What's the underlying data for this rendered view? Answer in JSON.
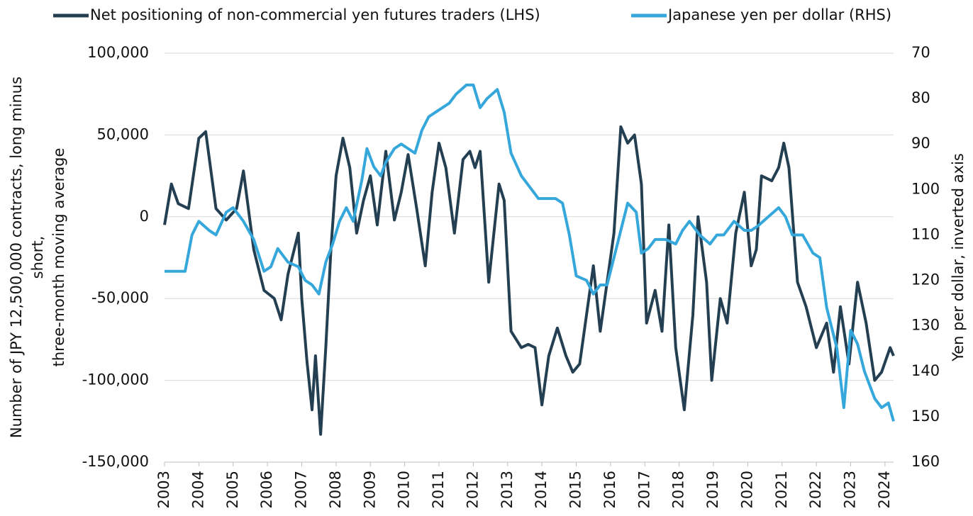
{
  "chart_data": {
    "type": "line",
    "ylabel": [
      "Number of JPY 12,500,000 contracts, long minus",
      "short,",
      "three-month moving average"
    ],
    "y2label": "Yen per dollar,  inverted axis",
    "xlim": [
      2003,
      2024.25
    ],
    "xticks": [
      2003,
      2004,
      2005,
      2006,
      2007,
      2008,
      2009,
      2010,
      2011,
      2012,
      2013,
      2014,
      2015,
      2016,
      2017,
      2018,
      2019,
      2020,
      2021,
      2022,
      2023,
      2024
    ],
    "ylim": [
      -150000,
      100000
    ],
    "yticks": [
      {
        "value": -150000,
        "label": "-150,000"
      },
      {
        "value": -100000,
        "label": "-100,000"
      },
      {
        "value": -50000,
        "label": "-50,000"
      },
      0,
      {
        "value": 50000,
        "label": "50,000"
      },
      {
        "value": 100000,
        "label": "100,000"
      }
    ],
    "y2lim": [
      70,
      160
    ],
    "y2_inverted": true,
    "y2ticks": [
      70,
      80,
      90,
      100,
      110,
      120,
      130,
      140,
      150,
      160
    ],
    "grid": true,
    "legend": "top",
    "series": [
      {
        "name": "Net positioning of non-commercial yen futures traders (LHS)",
        "color": "#243f52",
        "axis": "y",
        "x": [
          2003.0,
          2003.2,
          2003.4,
          2003.7,
          2004.0,
          2004.2,
          2004.5,
          2004.8,
          2005.1,
          2005.3,
          2005.6,
          2005.9,
          2006.2,
          2006.4,
          2006.6,
          2006.9,
          2007.0,
          2007.15,
          2007.3,
          2007.4,
          2007.55,
          2007.7,
          2007.85,
          2008.0,
          2008.2,
          2008.4,
          2008.6,
          2008.8,
          2009.0,
          2009.2,
          2009.45,
          2009.7,
          2009.9,
          2010.1,
          2010.35,
          2010.6,
          2010.8,
          2011.0,
          2011.2,
          2011.45,
          2011.7,
          2011.9,
          2012.05,
          2012.2,
          2012.45,
          2012.75,
          2012.9,
          2013.1,
          2013.4,
          2013.6,
          2013.8,
          2014.0,
          2014.2,
          2014.45,
          2014.7,
          2014.9,
          2015.1,
          2015.3,
          2015.5,
          2015.7,
          2015.9,
          2016.1,
          2016.3,
          2016.5,
          2016.7,
          2016.9,
          2017.05,
          2017.3,
          2017.5,
          2017.7,
          2017.9,
          2018.15,
          2018.4,
          2018.55,
          2018.8,
          2018.95,
          2019.2,
          2019.4,
          2019.65,
          2019.9,
          2020.1,
          2020.25,
          2020.4,
          2020.7,
          2020.9,
          2021.05,
          2021.2,
          2021.45,
          2021.7,
          2022.0,
          2022.3,
          2022.5,
          2022.7,
          2022.95,
          2023.2,
          2023.45,
          2023.7,
          2023.9,
          2024.15,
          2024.25
        ],
        "values": [
          -5000,
          20000,
          8000,
          5000,
          48000,
          52000,
          5000,
          -2000,
          5000,
          28000,
          -20000,
          -45000,
          -50000,
          -63000,
          -35000,
          -10000,
          -50000,
          -88000,
          -118000,
          -85000,
          -133000,
          -80000,
          -20000,
          25000,
          48000,
          30000,
          -10000,
          10000,
          25000,
          -5000,
          40000,
          -2000,
          15000,
          38000,
          5000,
          -30000,
          15000,
          45000,
          30000,
          -10000,
          35000,
          40000,
          30000,
          40000,
          -40000,
          20000,
          10000,
          -70000,
          -80000,
          -78000,
          -80000,
          -115000,
          -85000,
          -68000,
          -85000,
          -95000,
          -90000,
          -60000,
          -30000,
          -70000,
          -40000,
          -10000,
          55000,
          45000,
          50000,
          20000,
          -65000,
          -45000,
          -70000,
          -5000,
          -80000,
          -118000,
          -60000,
          0,
          -40000,
          -100000,
          -50000,
          -65000,
          -10000,
          15000,
          -30000,
          -20000,
          25000,
          22000,
          30000,
          45000,
          30000,
          -40000,
          -55000,
          -80000,
          -65000,
          -95000,
          -55000,
          -90000,
          -40000,
          -65000,
          -100000,
          -95000,
          -80000,
          -85000
        ]
      },
      {
        "name": "Japanese yen per dollar (RHS)",
        "color": "#35a7da",
        "axis": "y2",
        "x": [
          2003.0,
          2003.3,
          2003.6,
          2003.8,
          2004.0,
          2004.3,
          2004.5,
          2004.8,
          2005.0,
          2005.3,
          2005.6,
          2005.9,
          2006.1,
          2006.3,
          2006.6,
          2006.9,
          2007.1,
          2007.3,
          2007.5,
          2007.7,
          2007.9,
          2008.1,
          2008.3,
          2008.5,
          2008.75,
          2008.9,
          2009.1,
          2009.3,
          2009.45,
          2009.7,
          2009.9,
          2010.1,
          2010.3,
          2010.5,
          2010.7,
          2010.9,
          2011.1,
          2011.3,
          2011.5,
          2011.8,
          2012.0,
          2012.2,
          2012.4,
          2012.7,
          2012.9,
          2013.1,
          2013.4,
          2013.6,
          2013.9,
          2014.1,
          2014.4,
          2014.6,
          2014.8,
          2015.0,
          2015.3,
          2015.5,
          2015.7,
          2015.9,
          2016.1,
          2016.3,
          2016.5,
          2016.75,
          2016.9,
          2017.1,
          2017.3,
          2017.6,
          2017.9,
          2018.1,
          2018.3,
          2018.6,
          2018.9,
          2019.1,
          2019.3,
          2019.6,
          2019.9,
          2020.1,
          2020.3,
          2020.6,
          2020.9,
          2021.1,
          2021.3,
          2021.6,
          2021.9,
          2022.1,
          2022.3,
          2022.6,
          2022.8,
          2023.0,
          2023.2,
          2023.4,
          2023.7,
          2023.9,
          2024.1,
          2024.25
        ],
        "values": [
          118,
          118,
          118,
          110,
          107,
          109,
          110,
          105,
          104,
          107,
          111,
          118,
          117,
          113,
          116,
          117,
          120,
          121,
          123,
          116,
          112,
          107,
          104,
          107,
          98,
          91,
          95,
          97,
          94,
          91,
          90,
          91,
          92,
          87,
          84,
          83,
          82,
          81,
          79,
          77,
          77,
          82,
          80,
          78,
          83,
          92,
          97,
          99,
          102,
          102,
          102,
          103,
          110,
          119,
          120,
          123,
          121,
          121,
          115,
          109,
          103,
          105,
          114,
          113,
          111,
          111,
          112,
          109,
          107,
          110,
          112,
          110,
          110,
          107,
          109,
          109,
          108,
          106,
          104,
          106,
          110,
          110,
          114,
          115,
          126,
          135,
          148,
          131,
          134,
          140,
          146,
          148,
          147,
          151
        ]
      }
    ]
  }
}
